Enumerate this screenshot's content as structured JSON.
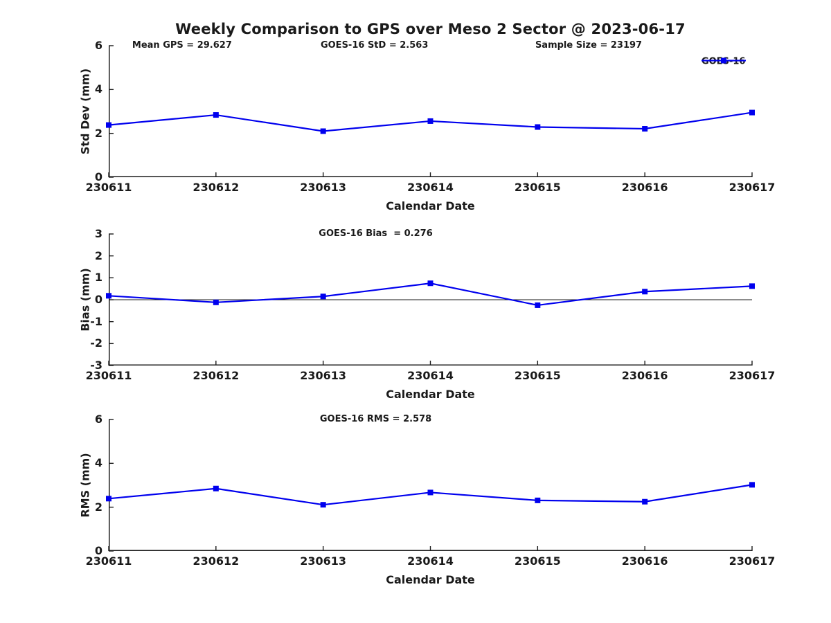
{
  "title": "Weekly Comparison to GPS over Meso 2 Sector @ 2023-06-17",
  "legend": {
    "label": "GOES-16"
  },
  "colors": {
    "line": "#0000EE",
    "axis": "#1a1a1a",
    "text": "#1a1a1a",
    "background": "#ffffff"
  },
  "chart_data": [
    {
      "type": "line",
      "name": "std-dev-vs-date",
      "ylabel": "Std Dev (mm)",
      "xlabel": "Calendar Date",
      "ylim": [
        0,
        6
      ],
      "yticks": [
        0,
        2,
        4,
        6
      ],
      "grid": false,
      "zero_line": false,
      "legend_position": "top-right-outside",
      "annotations": [
        "Mean GPS = 29.627",
        "GOES-16 StD = 2.563",
        "Sample Size = 23197"
      ],
      "categories": [
        "230611",
        "230612",
        "230613",
        "230614",
        "230615",
        "230616",
        "230617"
      ],
      "series": [
        {
          "name": "GOES-16",
          "marker": "square",
          "values": [
            2.38,
            2.84,
            2.1,
            2.56,
            2.29,
            2.21,
            2.95
          ]
        }
      ]
    },
    {
      "type": "line",
      "name": "bias-vs-date",
      "ylabel": "Bias (mm)",
      "xlabel": "Calendar Date",
      "ylim": [
        -3,
        3
      ],
      "yticks": [
        -3,
        -2,
        -1,
        0,
        1,
        2,
        3
      ],
      "grid": false,
      "zero_line": true,
      "annotations": [
        "GOES-16 Bias  = 0.276"
      ],
      "categories": [
        "230611",
        "230612",
        "230613",
        "230614",
        "230615",
        "230616",
        "230617"
      ],
      "series": [
        {
          "name": "GOES-16",
          "marker": "square",
          "values": [
            0.18,
            -0.12,
            0.15,
            0.75,
            -0.25,
            0.37,
            0.62
          ]
        }
      ]
    },
    {
      "type": "line",
      "name": "rms-vs-date",
      "ylabel": "RMS (mm)",
      "xlabel": "Calendar Date",
      "ylim": [
        0,
        6
      ],
      "yticks": [
        0,
        2,
        4,
        6
      ],
      "grid": false,
      "zero_line": false,
      "annotations": [
        "GOES-16 RMS = 2.578"
      ],
      "categories": [
        "230611",
        "230612",
        "230613",
        "230614",
        "230615",
        "230616",
        "230617"
      ],
      "series": [
        {
          "name": "GOES-16",
          "marker": "square",
          "values": [
            2.39,
            2.85,
            2.11,
            2.67,
            2.31,
            2.25,
            3.02
          ]
        }
      ]
    }
  ]
}
